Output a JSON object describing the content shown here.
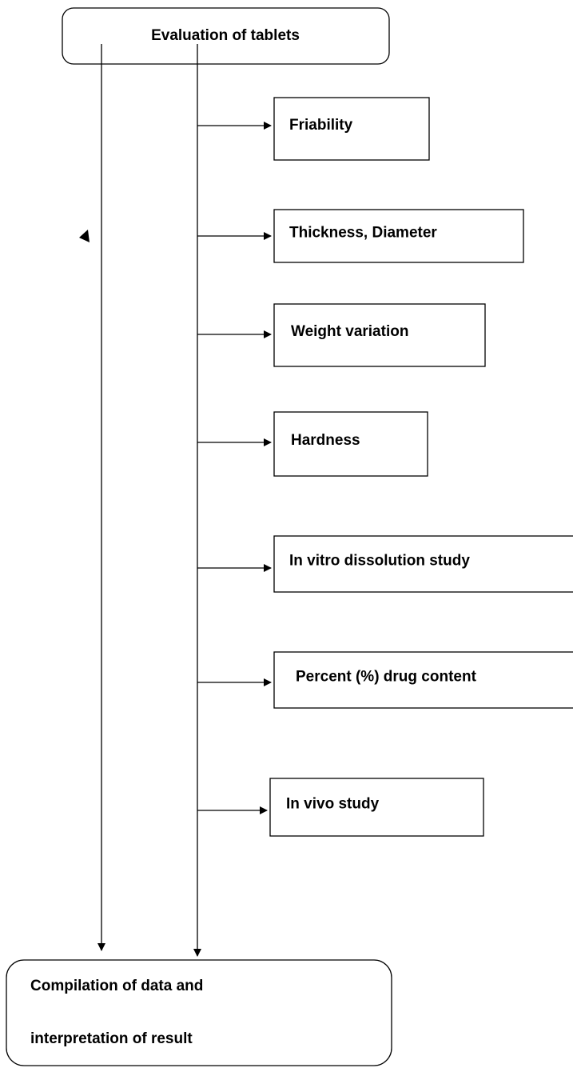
{
  "header": {
    "title": "Evaluation of tablets"
  },
  "nodes": [
    {
      "label": "Friability"
    },
    {
      "label": "Thickness, Diameter"
    },
    {
      "label": "Weight variation"
    },
    {
      "label": "Hardness"
    },
    {
      "label": "In vitro dissolution study"
    },
    {
      "label": "Percent (%) drug content"
    },
    {
      "label": "In vivo study"
    }
  ],
  "footer": {
    "lines": [
      "Compilation of data and",
      "interpretation of result"
    ]
  }
}
